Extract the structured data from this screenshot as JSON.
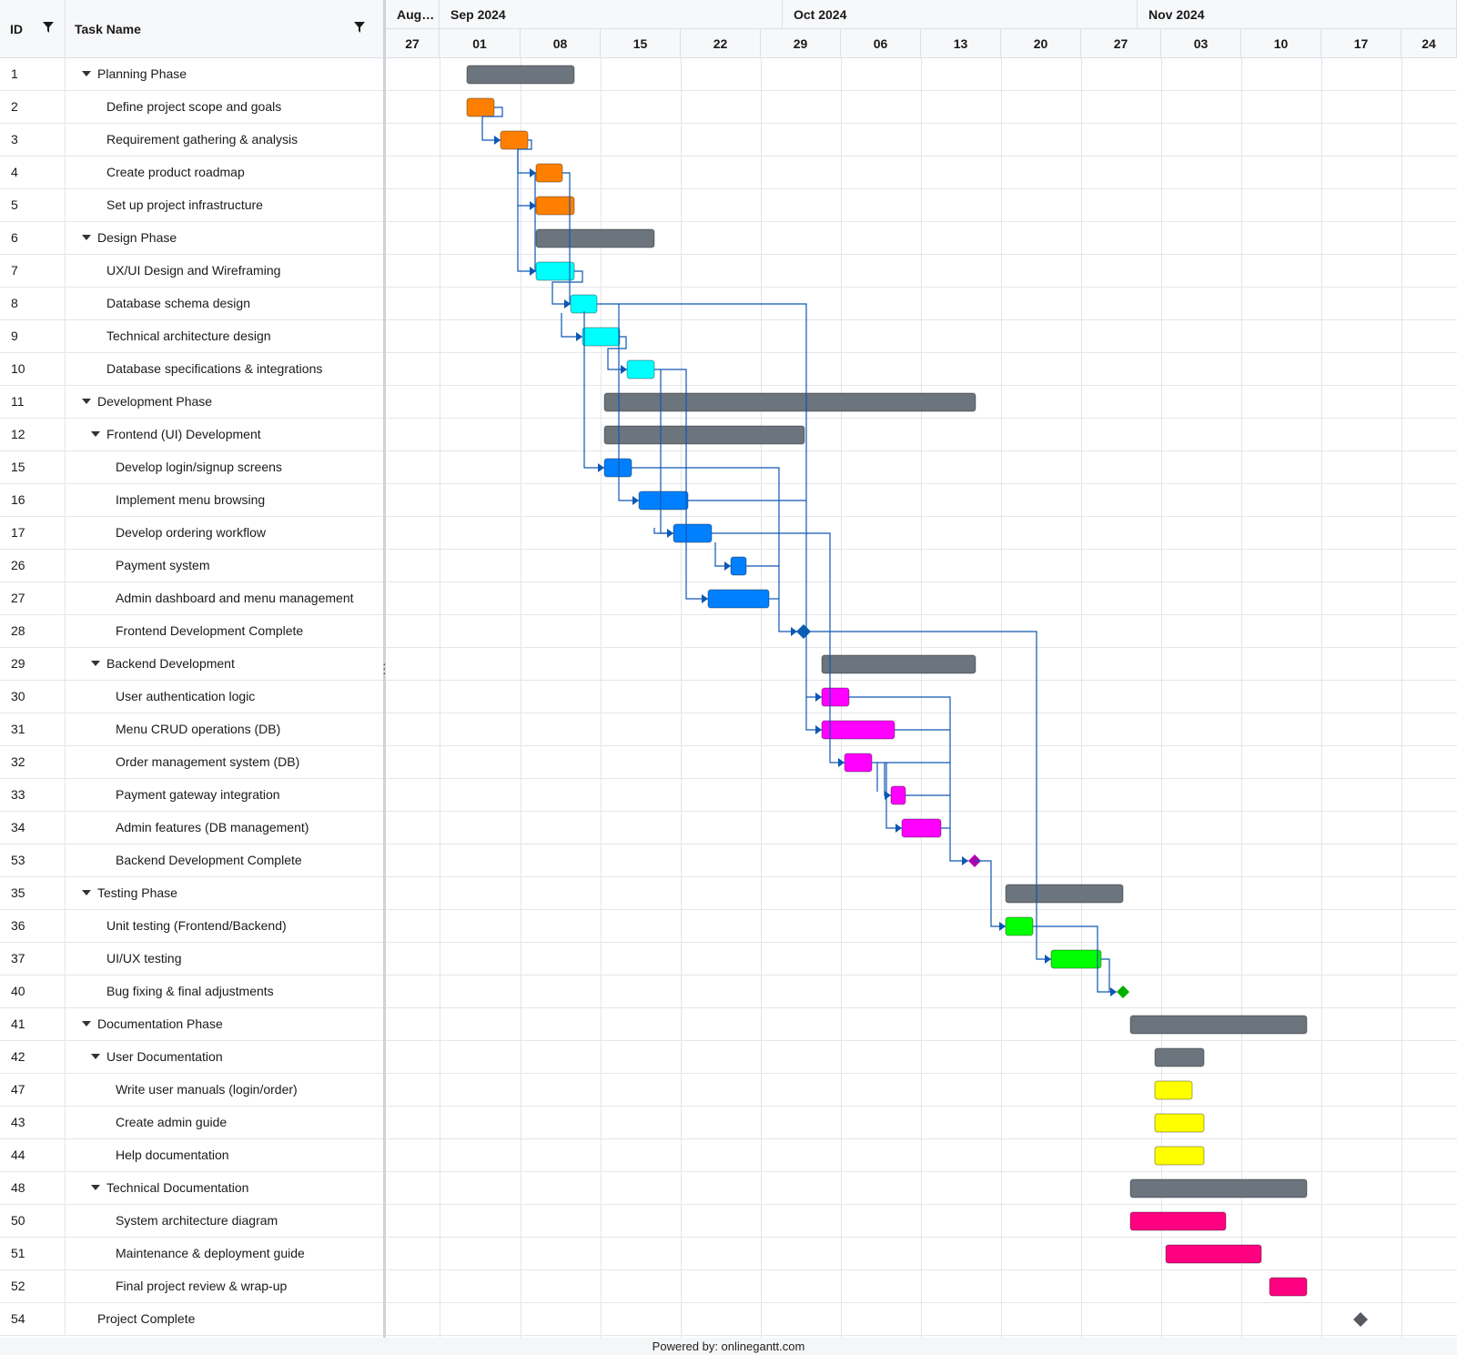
{
  "grid": {
    "id_header": "ID",
    "name_header": "Task Name"
  },
  "timeline": {
    "months": [
      "Aug…",
      "Sep 2024",
      "Oct 2024",
      "Nov 2024"
    ],
    "weeks": [
      "27",
      "01",
      "08",
      "15",
      "22",
      "29",
      "06",
      "13",
      "20",
      "27",
      "03",
      "10",
      "17",
      "24"
    ]
  },
  "colors": {
    "summary": "#6c757d",
    "planning": "#ff8000",
    "design": "#00ffff",
    "frontend": "#0080ff",
    "backend": "#ff00ff",
    "testing": "#00ff00",
    "user_docs": "#ffff00",
    "tech_docs": "#ff0080",
    "milestone_frontend": "#0a5fb4",
    "milestone_backend": "#b000b0",
    "milestone_testing": "#00b000",
    "milestone_project": "#555a60",
    "link": "#0d57b5"
  },
  "tasks": [
    {
      "id": "1",
      "name": "Planning Phase",
      "level": 0,
      "parent": true
    },
    {
      "id": "2",
      "name": "Define project scope and goals",
      "level": 1
    },
    {
      "id": "3",
      "name": "Requirement gathering & analysis",
      "level": 1
    },
    {
      "id": "4",
      "name": "Create product roadmap",
      "level": 1
    },
    {
      "id": "5",
      "name": "Set up project infrastructure",
      "level": 1
    },
    {
      "id": "6",
      "name": "Design Phase",
      "level": 0,
      "parent": true
    },
    {
      "id": "7",
      "name": "UX/UI Design and Wireframing",
      "level": 1
    },
    {
      "id": "8",
      "name": "Database schema design",
      "level": 1
    },
    {
      "id": "9",
      "name": "Technical architecture design",
      "level": 1
    },
    {
      "id": "10",
      "name": "Database specifications & integrations",
      "level": 1
    },
    {
      "id": "11",
      "name": "Development Phase",
      "level": 0,
      "parent": true
    },
    {
      "id": "12",
      "name": "Frontend (UI) Development",
      "level": 1,
      "parent": true
    },
    {
      "id": "15",
      "name": "Develop login/signup screens",
      "level": 2
    },
    {
      "id": "16",
      "name": "Implement menu browsing",
      "level": 2
    },
    {
      "id": "17",
      "name": "Develop ordering workflow",
      "level": 2
    },
    {
      "id": "26",
      "name": "Payment system",
      "level": 2
    },
    {
      "id": "27",
      "name": "Admin dashboard and menu management",
      "level": 2
    },
    {
      "id": "28",
      "name": "Frontend Development Complete",
      "level": 2
    },
    {
      "id": "29",
      "name": "Backend Development",
      "level": 1,
      "parent": true
    },
    {
      "id": "30",
      "name": "User authentication logic",
      "level": 2
    },
    {
      "id": "31",
      "name": "Menu CRUD operations (DB)",
      "level": 2
    },
    {
      "id": "32",
      "name": "Order management system (DB)",
      "level": 2
    },
    {
      "id": "33",
      "name": "Payment gateway integration",
      "level": 2
    },
    {
      "id": "34",
      "name": "Admin features (DB management)",
      "level": 2
    },
    {
      "id": "53",
      "name": "Backend Development Complete",
      "level": 2
    },
    {
      "id": "35",
      "name": "Testing Phase",
      "level": 0,
      "parent": true
    },
    {
      "id": "36",
      "name": "Unit testing (Frontend/Backend)",
      "level": 1
    },
    {
      "id": "37",
      "name": "UI/UX testing",
      "level": 1
    },
    {
      "id": "40",
      "name": "Bug fixing & final adjustments",
      "level": 1
    },
    {
      "id": "41",
      "name": "Documentation Phase",
      "level": 0,
      "parent": true
    },
    {
      "id": "42",
      "name": "User Documentation",
      "level": 1,
      "parent": true
    },
    {
      "id": "47",
      "name": "Write user manuals (login/order)",
      "level": 2
    },
    {
      "id": "43",
      "name": "Create admin guide",
      "level": 2
    },
    {
      "id": "44",
      "name": "Help documentation",
      "level": 2
    },
    {
      "id": "48",
      "name": "Technical Documentation",
      "level": 1,
      "parent": true
    },
    {
      "id": "50",
      "name": "System architecture diagram",
      "level": 2
    },
    {
      "id": "51",
      "name": "Maintenance & deployment guide",
      "level": 2
    },
    {
      "id": "52",
      "name": "Final project review & wrap-up",
      "level": 2
    },
    {
      "id": "54",
      "name": "Project Complete",
      "level": 0
    }
  ],
  "footer": {
    "text": "Powered by: onlinegantt.com"
  }
}
